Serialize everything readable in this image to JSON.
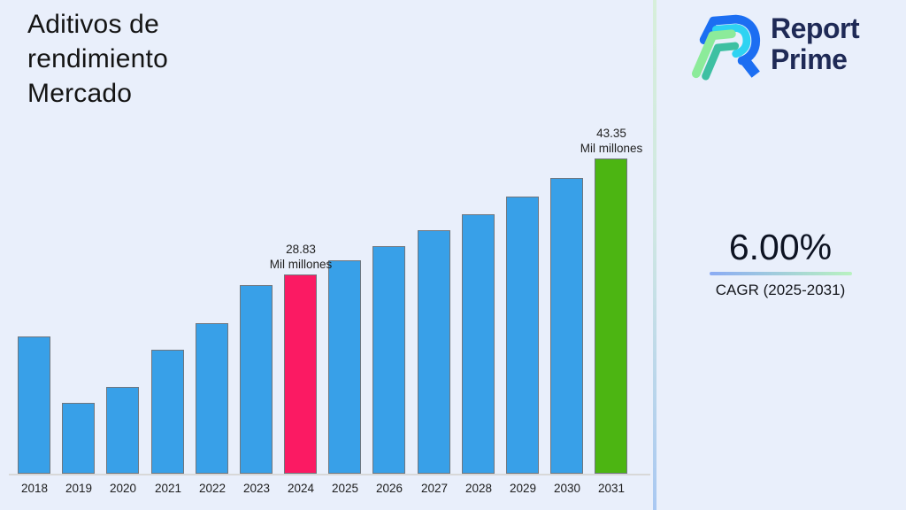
{
  "page": {
    "background": "#e9effb"
  },
  "header": {
    "title": "Aditivos de rendimiento Mercado"
  },
  "logo": {
    "line1": "Report",
    "line2": "Prime",
    "text_color": "#1f2a56",
    "icon_colors": {
      "blue": "#1c6ef2",
      "cyan": "#2ed3f2",
      "green": "#8ceb9a",
      "teal": "#3ec0a2"
    }
  },
  "cagr": {
    "value": "6.00%",
    "label": "CAGR (2025-2031)",
    "underline_from": "#8babf4",
    "underline_to": "#b9f2c0"
  },
  "chart_data": {
    "type": "bar",
    "title": "Aditivos de rendimiento Mercado",
    "unit": "Mil millones",
    "categories": [
      "2018",
      "2019",
      "2020",
      "2021",
      "2022",
      "2023",
      "2024",
      "2025",
      "2026",
      "2027",
      "2028",
      "2029",
      "2030",
      "2031"
    ],
    "values": [
      21.05,
      12.75,
      14.75,
      19.4,
      22.7,
      27.5,
      28.83,
      30.56,
      32.39,
      34.34,
      36.4,
      38.58,
      40.9,
      43.35
    ],
    "xlabel": "",
    "ylabel": "",
    "ylim": [
      0,
      48
    ],
    "grid": false,
    "legend": false,
    "bar_color_default": "#38a0e8",
    "bar_border_color": "#6f767e",
    "highlight_bars": {
      "2024": "#fb1a63",
      "2031": "#4cb512"
    },
    "annotations": [
      {
        "category": "2024",
        "line1": "28.83",
        "line2": "Mil millones"
      },
      {
        "category": "2031",
        "line1": "43.35",
        "line2": "Mil millones"
      }
    ],
    "axis_line_color": "#d8d8d8"
  }
}
